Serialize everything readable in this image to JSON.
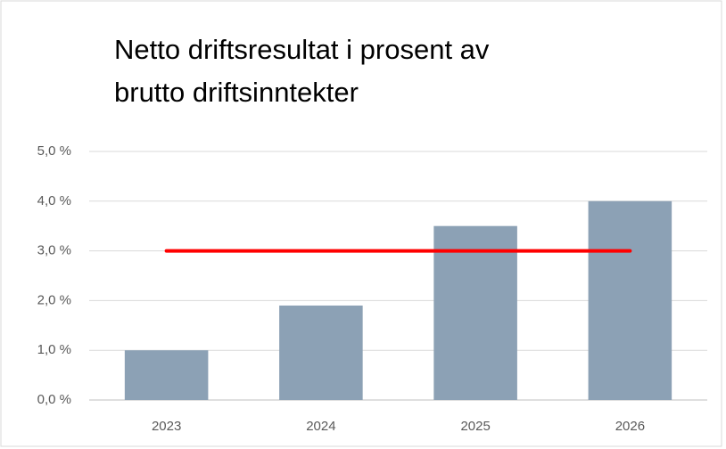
{
  "chart_data": {
    "type": "bar",
    "title": [
      "Netto driftsresultat i prosent av",
      "brutto driftsinntekter"
    ],
    "categories": [
      "2023",
      "2024",
      "2025",
      "2026"
    ],
    "series": [
      {
        "type": "bar",
        "color": "#8ca1b5",
        "values": [
          1.0,
          1.9,
          3.5,
          4.0
        ]
      },
      {
        "type": "line",
        "color": "#ff0000",
        "values": [
          3.0,
          3.0,
          3.0,
          3.0
        ]
      }
    ],
    "ylim": [
      0,
      5
    ],
    "yticks": [
      {
        "value": 0,
        "label": "0,0 %"
      },
      {
        "value": 1,
        "label": "1,0 %"
      },
      {
        "value": 2,
        "label": "2,0 %"
      },
      {
        "value": 3,
        "label": "3,0 %"
      },
      {
        "value": 4,
        "label": "4,0 %"
      },
      {
        "value": 5,
        "label": "5,0 %"
      }
    ],
    "grid": true
  }
}
